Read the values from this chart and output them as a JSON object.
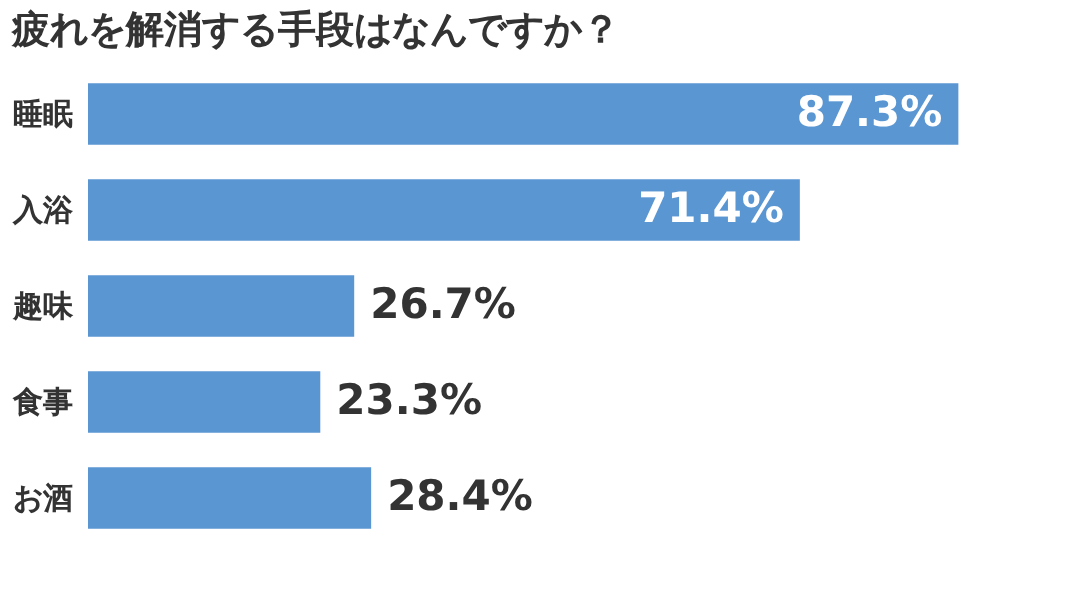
{
  "chart_data": {
    "type": "bar",
    "orientation": "horizontal",
    "title": "疲れを解消する手段はなんですか？",
    "categories": [
      "睡眠",
      "入浴",
      "趣味",
      "食事",
      "お酒"
    ],
    "values": [
      87.3,
      71.4,
      26.7,
      23.3,
      28.4
    ],
    "value_labels": [
      "87.3%",
      "71.4%",
      "26.7%",
      "23.3%",
      "28.4%"
    ],
    "color": "#5a96d2"
  }
}
